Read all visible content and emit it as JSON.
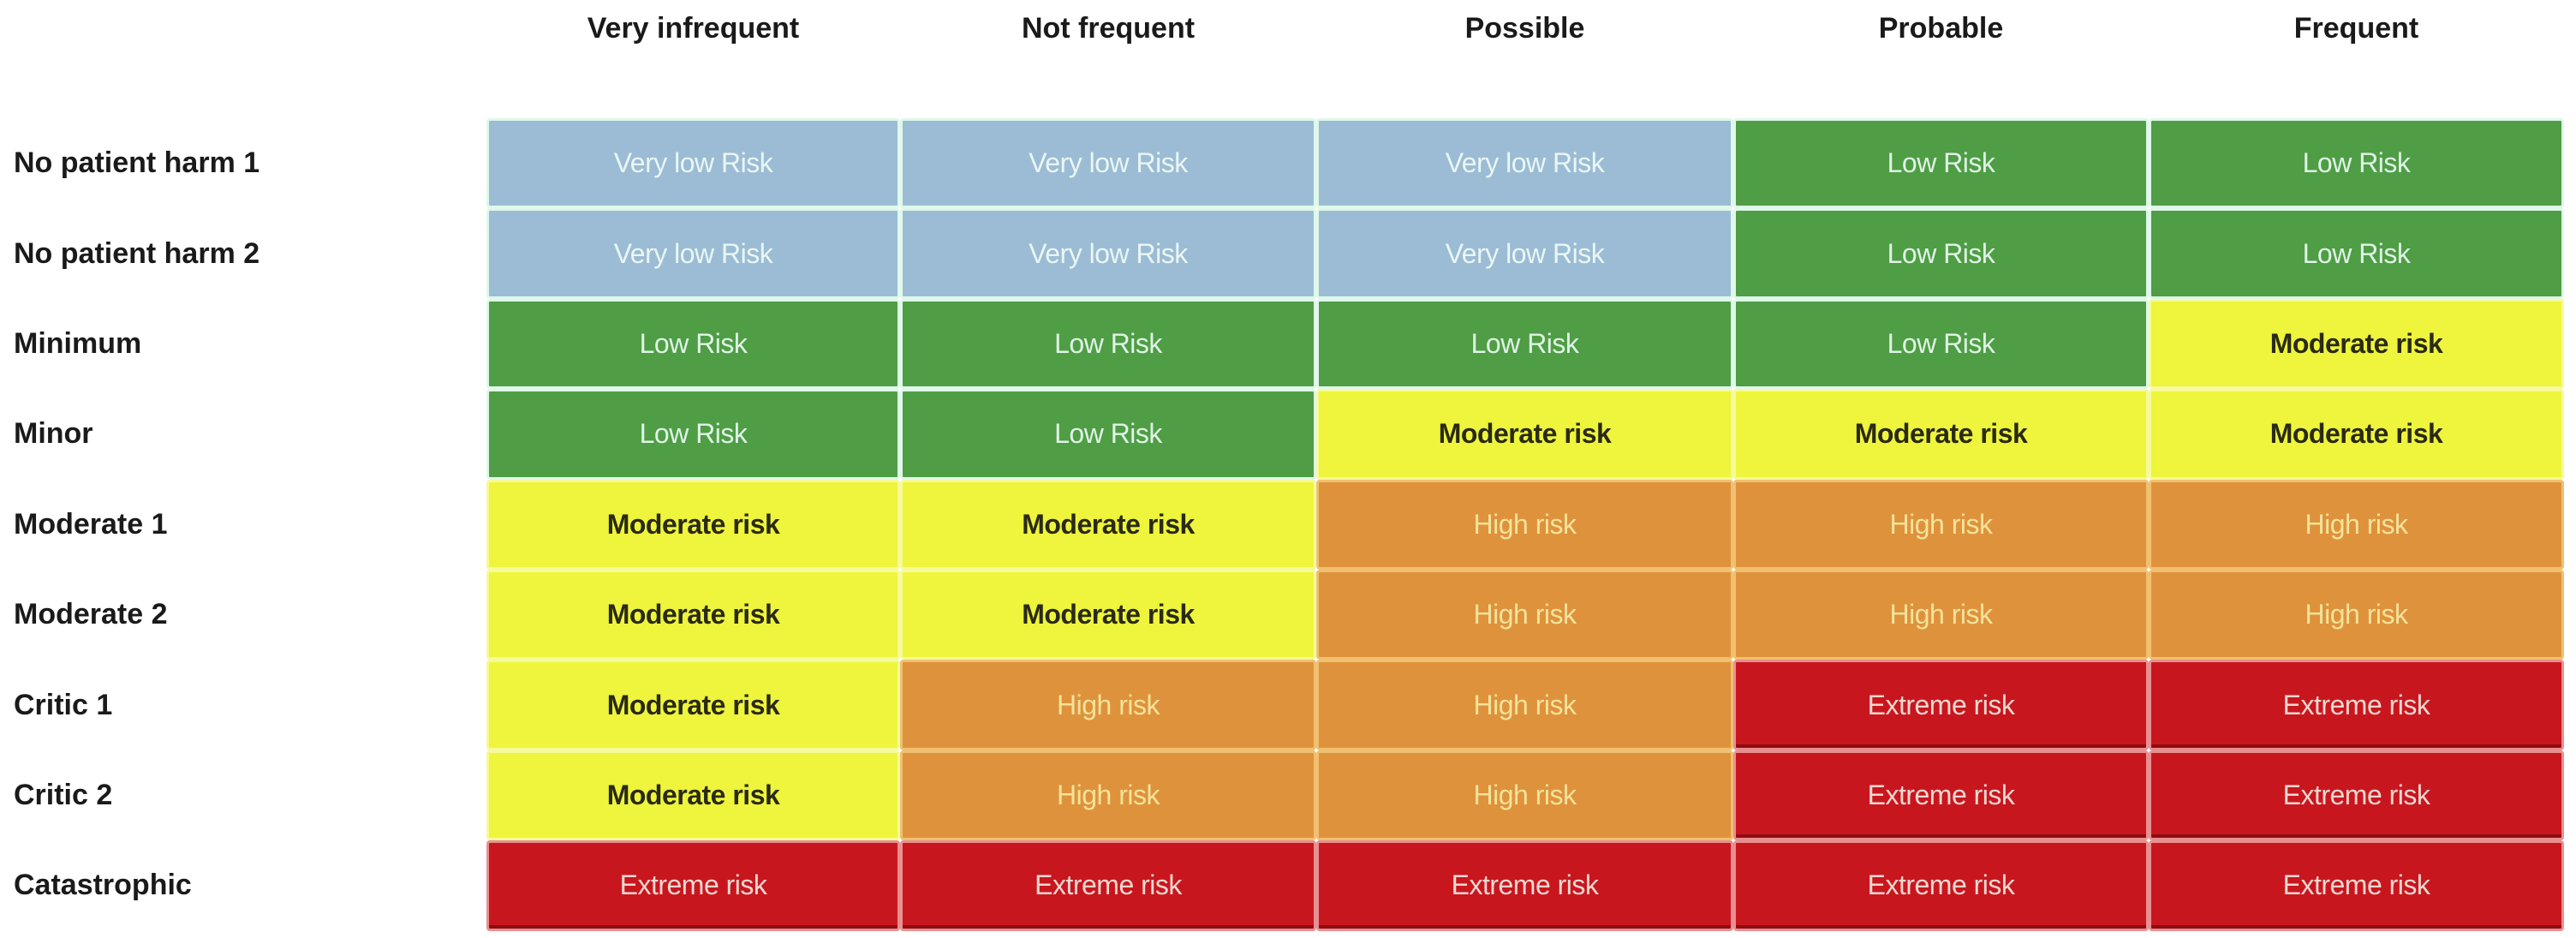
{
  "columns": [
    "Very infrequent",
    "Not frequent",
    "Possible",
    "Probable",
    "Frequent"
  ],
  "rows": [
    {
      "label": "No patient harm  1",
      "cells": [
        "Very low Risk",
        "Very low Risk",
        "Very low Risk",
        "Low Risk",
        "Low Risk"
      ]
    },
    {
      "label": "No patient harm  2",
      "cells": [
        "Very low Risk",
        "Very low Risk",
        "Very low Risk",
        "Low Risk",
        "Low Risk"
      ]
    },
    {
      "label": "Minimum",
      "cells": [
        "Low Risk",
        "Low Risk",
        "Low Risk",
        "Low Risk",
        "Moderate risk"
      ]
    },
    {
      "label": "Minor",
      "cells": [
        "Low Risk",
        "Low Risk",
        "Moderate risk",
        "Moderate risk",
        "Moderate risk"
      ]
    },
    {
      "label": "Moderate 1",
      "cells": [
        "Moderate risk",
        "Moderate risk",
        "High risk",
        "High risk",
        "High risk"
      ]
    },
    {
      "label": "Moderate 2",
      "cells": [
        "Moderate risk",
        "Moderate risk",
        "High risk",
        "High risk",
        "High risk"
      ]
    },
    {
      "label": "Critic 1",
      "cells": [
        "Moderate risk",
        "High risk",
        "High risk",
        "Extreme risk",
        "Extreme risk"
      ]
    },
    {
      "label": "Critic 2",
      "cells": [
        "Moderate risk",
        "High risk",
        "High risk",
        "Extreme risk",
        "Extreme risk"
      ]
    },
    {
      "label": "Catastrophic",
      "cells": [
        "Extreme risk",
        "Extreme risk",
        "Extreme risk",
        "Extreme risk",
        "Extreme risk"
      ]
    }
  ],
  "level_colors": {
    "Very low Risk": "#9bbcd4",
    "Low Risk": "#4f9d45",
    "Moderate risk": "#eef53c",
    "High risk": "#df923c",
    "Extreme risk": "#c8161f"
  }
}
